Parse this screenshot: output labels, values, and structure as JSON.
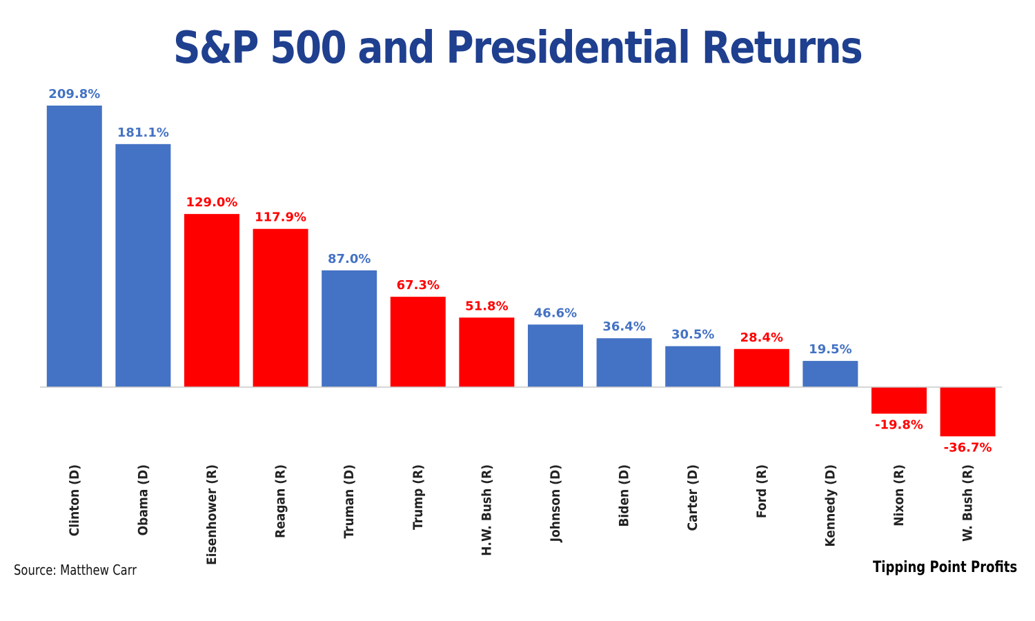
{
  "colors": {
    "democrat": "#4472c4",
    "republican": "#ff0000",
    "title": "#1f3f8f",
    "axis": "#c8c8c8"
  },
  "footer": {
    "source": "Source: Matthew Carr",
    "brand": "Tipping Point Profits"
  },
  "chart_data": {
    "type": "bar",
    "title": "S&P 500 and Presidential Returns",
    "xlabel": "",
    "ylabel": "",
    "grid": false,
    "legend": "none",
    "ylim": [
      -45,
      215
    ],
    "categories": [
      "Clinton (D)",
      "Obama (D)",
      "Eisenhower (R)",
      "Reagan (R)",
      "Truman (D)",
      "Trump (R)",
      "H.W. Bush (R)",
      "Johnson (D)",
      "Biden (D)",
      "Carter (D)",
      "Ford (R)",
      "Kennedy (D)",
      "Nixon (R)",
      "W. Bush (R)"
    ],
    "values": [
      209.8,
      181.1,
      129.0,
      117.9,
      87.0,
      67.3,
      51.8,
      46.6,
      36.4,
      30.5,
      28.4,
      19.5,
      -19.8,
      -36.7
    ],
    "labels": [
      "209.8%",
      "181.1%",
      "129.0%",
      "117.9%",
      "87.0%",
      "67.3%",
      "51.8%",
      "46.6%",
      "36.4%",
      "30.5%",
      "28.4%",
      "19.5%",
      "-19.8%",
      "-36.7%"
    ],
    "party": [
      "D",
      "D",
      "R",
      "R",
      "D",
      "R",
      "R",
      "D",
      "D",
      "D",
      "R",
      "D",
      "R",
      "R"
    ]
  }
}
